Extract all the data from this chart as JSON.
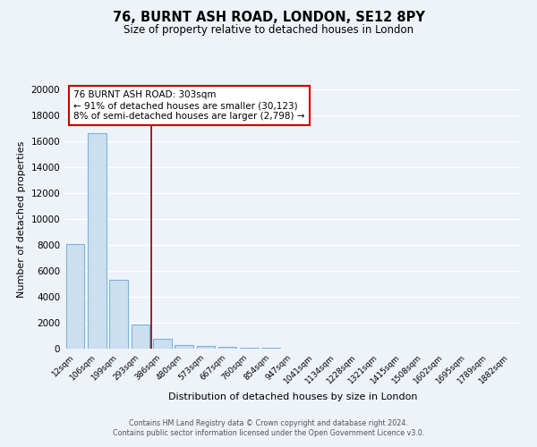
{
  "title": "76, BURNT ASH ROAD, LONDON, SE12 8PY",
  "subtitle": "Size of property relative to detached houses in London",
  "xlabel": "Distribution of detached houses by size in London",
  "ylabel": "Number of detached properties",
  "bar_labels": [
    "12sqm",
    "106sqm",
    "199sqm",
    "293sqm",
    "386sqm",
    "480sqm",
    "573sqm",
    "667sqm",
    "760sqm",
    "854sqm",
    "947sqm",
    "1041sqm",
    "1134sqm",
    "1228sqm",
    "1321sqm",
    "1415sqm",
    "1508sqm",
    "1602sqm",
    "1695sqm",
    "1789sqm",
    "1882sqm"
  ],
  "bar_values": [
    8100,
    16600,
    5300,
    1850,
    750,
    300,
    180,
    140,
    90,
    60,
    0,
    0,
    0,
    0,
    0,
    0,
    0,
    0,
    0,
    0,
    0
  ],
  "bar_color": "#ccdff0",
  "bar_edge_color": "#7ab5d8",
  "vline_color": "#8b0000",
  "annotation_line1": "76 BURNT ASH ROAD: 303sqm",
  "annotation_line2": "← 91% of detached houses are smaller (30,123)",
  "annotation_line3": "8% of semi-detached houses are larger (2,798) →",
  "ylim": [
    0,
    20000
  ],
  "yticks": [
    0,
    2000,
    4000,
    6000,
    8000,
    10000,
    12000,
    14000,
    16000,
    18000,
    20000
  ],
  "footer1": "Contains HM Land Registry data © Crown copyright and database right 2024.",
  "footer2": "Contains public sector information licensed under the Open Government Licence v3.0.",
  "bg_color": "#eef2f9",
  "plot_bg_color": "#eef2f9",
  "grid_color": "#ffffff"
}
